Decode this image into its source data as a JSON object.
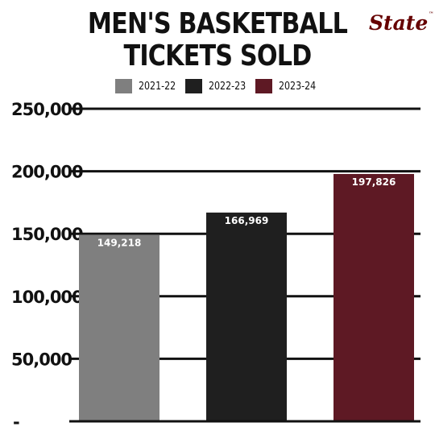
{
  "title_line1": "MEN'S BASKETBALL",
  "title_line2": "TICKETS SOLD",
  "logo_text": "State",
  "logo_mark": "™",
  "colors": {
    "background": "#ffffff",
    "text": "#111111",
    "gridline": "#111111",
    "logo": "#660000"
  },
  "chart_data": {
    "type": "bar",
    "title": "MEN'S BASKETBALL TICKETS SOLD",
    "categories": [
      "2021-22",
      "2022-23",
      "2023-24"
    ],
    "values": [
      149218,
      166969,
      197826
    ],
    "data_labels": [
      "149,218",
      "166,969",
      "197,826"
    ],
    "colors": [
      "#7f7f7f",
      "#1f1f1f",
      "#5e1924"
    ],
    "yticks": [
      0,
      50000,
      100000,
      150000,
      200000,
      250000
    ],
    "ytick_labels": [
      "-",
      "50,000",
      "100,000",
      "150,000",
      "200,000",
      "250,000"
    ],
    "ylim": [
      0,
      250000
    ],
    "grid": true,
    "legend": [
      "2021-22",
      "2022-23",
      "2023-24"
    ],
    "legend_position": "top"
  }
}
